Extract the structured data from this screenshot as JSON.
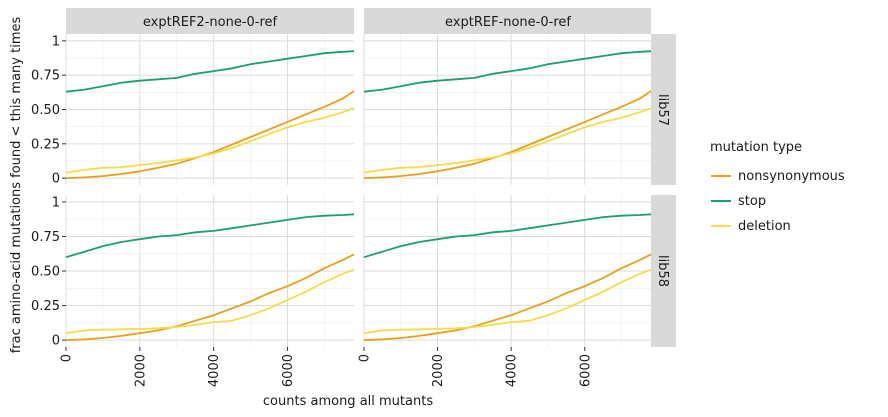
{
  "chart_data": {
    "type": "line",
    "ylabel": "frac amino-acid mutations found < this many times",
    "xlabel": "counts among all mutants",
    "xlim": [
      0,
      7800
    ],
    "ylim": [
      -0.05,
      1.05
    ],
    "x_ticks": [
      0,
      2000,
      4000,
      6000
    ],
    "x_tick_labels": [
      "0",
      "2000",
      "4000",
      "6000"
    ],
    "y_ticks": [
      0,
      0.25,
      0.5,
      0.75,
      1
    ],
    "y_tick_labels": [
      "0",
      "0.25",
      "0.50",
      "0.75",
      "1"
    ],
    "grid": true,
    "legend": {
      "title": "mutation type",
      "position": "right",
      "entries": [
        {
          "name": "nonsynonymous",
          "color": "#E6A11A"
        },
        {
          "name": "stop",
          "color": "#1B9E77"
        },
        {
          "name": "deletion",
          "color": "#F2DD4B"
        }
      ]
    },
    "columns": [
      "exptREF2-none-0-ref",
      "exptREF-none-0-ref"
    ],
    "rows": [
      "lib57",
      "lib58"
    ],
    "panels": [
      {
        "column": "exptREF2-none-0-ref",
        "row": "lib57",
        "series": [
          {
            "name": "nonsynonymous",
            "x": [
              0,
              500,
              1000,
              1500,
              2000,
              2500,
              3000,
              3500,
              4000,
              4500,
              5000,
              5500,
              6000,
              6500,
              7000,
              7500,
              7800
            ],
            "y": [
              0.0,
              0.005,
              0.015,
              0.03,
              0.05,
              0.075,
              0.105,
              0.145,
              0.19,
              0.245,
              0.3,
              0.355,
              0.41,
              0.465,
              0.52,
              0.58,
              0.635
            ]
          },
          {
            "name": "stop",
            "x": [
              0,
              500,
              1000,
              1500,
              2000,
              2500,
              3000,
              3500,
              4000,
              4500,
              5000,
              5500,
              6000,
              6500,
              7000,
              7500,
              7800
            ],
            "y": [
              0.63,
              0.645,
              0.67,
              0.695,
              0.71,
              0.72,
              0.73,
              0.76,
              0.78,
              0.8,
              0.83,
              0.85,
              0.87,
              0.89,
              0.91,
              0.92,
              0.925
            ]
          },
          {
            "name": "deletion",
            "x": [
              0,
              500,
              1000,
              1500,
              2000,
              2500,
              3000,
              3500,
              4000,
              4500,
              5000,
              5500,
              6000,
              6500,
              7000,
              7500,
              7800
            ],
            "y": [
              0.04,
              0.06,
              0.075,
              0.08,
              0.095,
              0.11,
              0.13,
              0.15,
              0.18,
              0.22,
              0.27,
              0.32,
              0.37,
              0.41,
              0.44,
              0.48,
              0.51
            ]
          }
        ]
      },
      {
        "column": "exptREF-none-0-ref",
        "row": "lib57",
        "series": [
          {
            "name": "nonsynonymous",
            "x": [
              0,
              500,
              1000,
              1500,
              2000,
              2500,
              3000,
              3500,
              4000,
              4500,
              5000,
              5500,
              6000,
              6500,
              7000,
              7500,
              7800
            ],
            "y": [
              0.0,
              0.005,
              0.015,
              0.03,
              0.05,
              0.075,
              0.105,
              0.145,
              0.19,
              0.245,
              0.3,
              0.355,
              0.41,
              0.465,
              0.52,
              0.58,
              0.635
            ]
          },
          {
            "name": "stop",
            "x": [
              0,
              500,
              1000,
              1500,
              2000,
              2500,
              3000,
              3500,
              4000,
              4500,
              5000,
              5500,
              6000,
              6500,
              7000,
              7500,
              7800
            ],
            "y": [
              0.63,
              0.645,
              0.67,
              0.695,
              0.71,
              0.72,
              0.73,
              0.76,
              0.78,
              0.8,
              0.83,
              0.85,
              0.87,
              0.89,
              0.91,
              0.92,
              0.925
            ]
          },
          {
            "name": "deletion",
            "x": [
              0,
              500,
              1000,
              1500,
              2000,
              2500,
              3000,
              3500,
              4000,
              4500,
              5000,
              5500,
              6000,
              6500,
              7000,
              7500,
              7800
            ],
            "y": [
              0.04,
              0.06,
              0.075,
              0.08,
              0.095,
              0.11,
              0.13,
              0.15,
              0.18,
              0.22,
              0.27,
              0.32,
              0.37,
              0.41,
              0.44,
              0.48,
              0.51
            ]
          }
        ]
      },
      {
        "column": "exptREF2-none-0-ref",
        "row": "lib58",
        "series": [
          {
            "name": "nonsynonymous",
            "x": [
              0,
              500,
              1000,
              1500,
              2000,
              2500,
              3000,
              3500,
              4000,
              4500,
              5000,
              5500,
              6000,
              6500,
              7000,
              7500,
              7800
            ],
            "y": [
              0.0,
              0.005,
              0.015,
              0.03,
              0.05,
              0.07,
              0.1,
              0.14,
              0.18,
              0.23,
              0.28,
              0.34,
              0.39,
              0.45,
              0.52,
              0.58,
              0.62
            ]
          },
          {
            "name": "stop",
            "x": [
              0,
              500,
              1000,
              1500,
              2000,
              2500,
              3000,
              3500,
              4000,
              4500,
              5000,
              5500,
              6000,
              6500,
              7000,
              7500,
              7800
            ],
            "y": [
              0.6,
              0.64,
              0.68,
              0.71,
              0.73,
              0.75,
              0.76,
              0.78,
              0.79,
              0.81,
              0.83,
              0.85,
              0.87,
              0.89,
              0.9,
              0.905,
              0.91
            ]
          },
          {
            "name": "deletion",
            "x": [
              0,
              500,
              1000,
              1500,
              2000,
              2500,
              3000,
              3500,
              4000,
              4500,
              5000,
              5500,
              6000,
              6500,
              7000,
              7500,
              7800
            ],
            "y": [
              0.05,
              0.07,
              0.075,
              0.078,
              0.08,
              0.085,
              0.095,
              0.11,
              0.13,
              0.14,
              0.18,
              0.23,
              0.29,
              0.35,
              0.42,
              0.48,
              0.51
            ]
          }
        ]
      },
      {
        "column": "exptREF-none-0-ref",
        "row": "lib58",
        "series": [
          {
            "name": "nonsynonymous",
            "x": [
              0,
              500,
              1000,
              1500,
              2000,
              2500,
              3000,
              3500,
              4000,
              4500,
              5000,
              5500,
              6000,
              6500,
              7000,
              7500,
              7800
            ],
            "y": [
              0.0,
              0.005,
              0.015,
              0.03,
              0.05,
              0.07,
              0.1,
              0.14,
              0.18,
              0.23,
              0.28,
              0.34,
              0.39,
              0.45,
              0.52,
              0.58,
              0.62
            ]
          },
          {
            "name": "stop",
            "x": [
              0,
              500,
              1000,
              1500,
              2000,
              2500,
              3000,
              3500,
              4000,
              4500,
              5000,
              5500,
              6000,
              6500,
              7000,
              7500,
              7800
            ],
            "y": [
              0.6,
              0.64,
              0.68,
              0.71,
              0.73,
              0.75,
              0.76,
              0.78,
              0.79,
              0.81,
              0.83,
              0.85,
              0.87,
              0.89,
              0.9,
              0.905,
              0.91
            ]
          },
          {
            "name": "deletion",
            "x": [
              0,
              500,
              1000,
              1500,
              2000,
              2500,
              3000,
              3500,
              4000,
              4500,
              5000,
              5500,
              6000,
              6500,
              7000,
              7500,
              7800
            ],
            "y": [
              0.05,
              0.07,
              0.075,
              0.078,
              0.08,
              0.085,
              0.095,
              0.11,
              0.13,
              0.14,
              0.18,
              0.23,
              0.29,
              0.35,
              0.42,
              0.48,
              0.51
            ]
          }
        ]
      }
    ]
  }
}
